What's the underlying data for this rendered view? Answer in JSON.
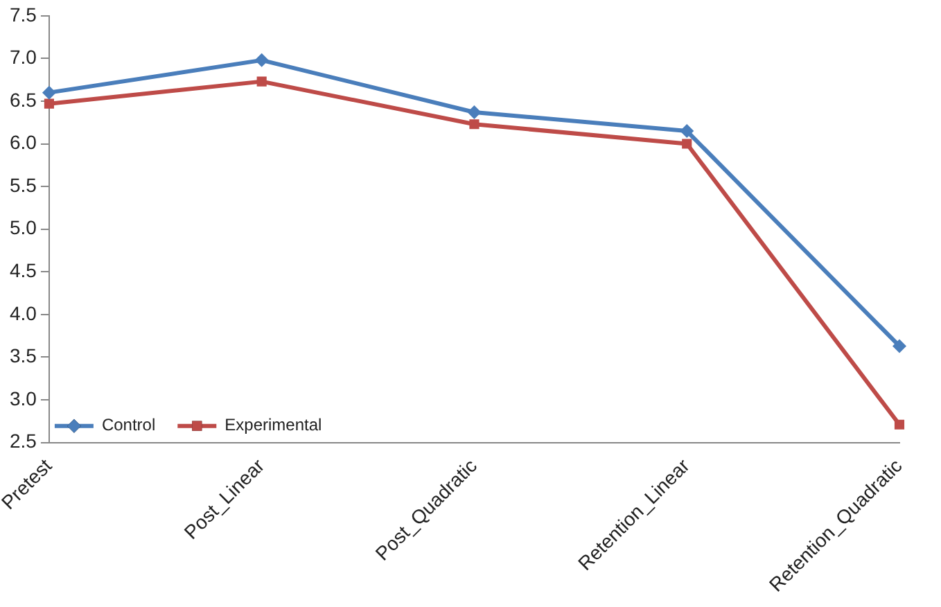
{
  "chart_data": {
    "type": "line",
    "categories": [
      "Pretest",
      "Post_Linear",
      "Post_Quadratic",
      "Retention_Linear",
      "Retention_Quadratic"
    ],
    "series": [
      {
        "name": "Control",
        "color": "#4a7ebb",
        "marker": "diamond",
        "values": [
          6.6,
          6.98,
          6.37,
          6.15,
          3.63
        ]
      },
      {
        "name": "Experimental",
        "color": "#be4b48",
        "marker": "square",
        "values": [
          6.47,
          6.73,
          6.23,
          6.0,
          2.71
        ]
      }
    ],
    "ylim": [
      2.5,
      7.5
    ],
    "yticks": [
      {
        "value": 2.5,
        "label": "2.5"
      },
      {
        "value": 3,
        "label": "3.0"
      },
      {
        "value": 3.5,
        "label": "3.5"
      },
      {
        "value": 4,
        "label": "4.0"
      },
      {
        "value": 4.5,
        "label": "4.5"
      },
      {
        "value": 5,
        "label": "5.0"
      },
      {
        "value": 5.5,
        "label": "5.5"
      },
      {
        "value": 6,
        "label": "6.0"
      },
      {
        "value": 6.5,
        "label": "6.5"
      },
      {
        "value": 7,
        "label": "7.0"
      },
      {
        "value": 7.5,
        "label": "7.5"
      }
    ],
    "grid": false,
    "legend": "bottom left",
    "line_style": "solid"
  }
}
